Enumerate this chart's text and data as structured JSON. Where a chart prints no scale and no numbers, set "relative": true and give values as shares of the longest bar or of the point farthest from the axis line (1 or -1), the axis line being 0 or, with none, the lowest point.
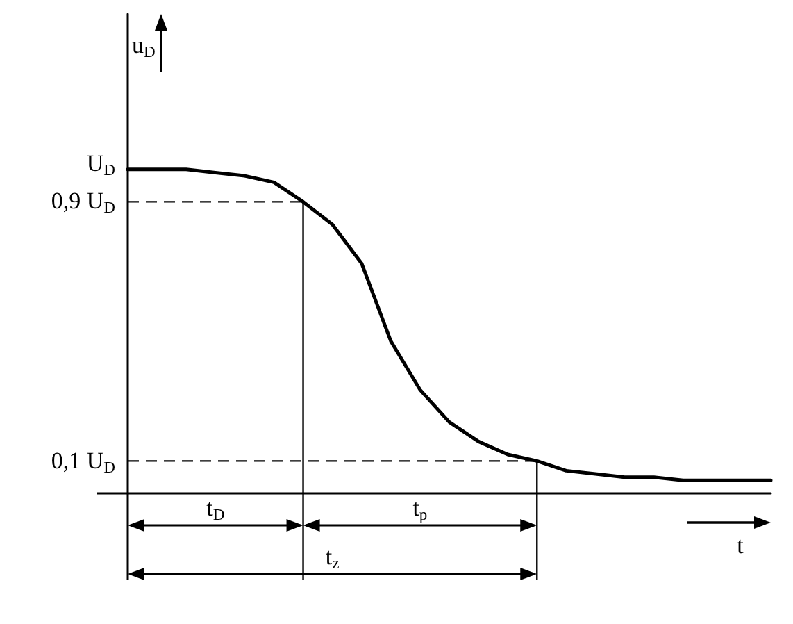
{
  "chart_data": {
    "type": "line",
    "relative": true,
    "xlabel": "t",
    "ylabel": "u$_{D}$",
    "categories": [
      null,
      null,
      null,
      null,
      null,
      null,
      null,
      null,
      null,
      null,
      null,
      null,
      null,
      null,
      null,
      null,
      null,
      null,
      null,
      null,
      null,
      null,
      null
    ],
    "series": [
      {
        "color": "#000000",
        "values": [
          1.0,
          1.0,
          1.0,
          0.99,
          0.98,
          0.96,
          0.9,
          0.83,
          0.71,
          0.47,
          0.32,
          0.22,
          0.16,
          0.12,
          0.1,
          0.07,
          0.06,
          0.05,
          0.05,
          0.04,
          0.04,
          0.04,
          0.04
        ]
      }
    ],
    "annotations": [
      "U$_{D}$",
      "t$_{D}$",
      "t$_{p}$",
      "t$_{z}$"
    ],
    "ref_lines": [
      {
        "axis": "y",
        "value": 0.9,
        "label": "0,9 U$_{D}$",
        "line_style": "dashed"
      },
      {
        "axis": "y",
        "value": 0.1,
        "label": "0,1 U$_{D}$",
        "line_style": "dashed"
      }
    ]
  }
}
